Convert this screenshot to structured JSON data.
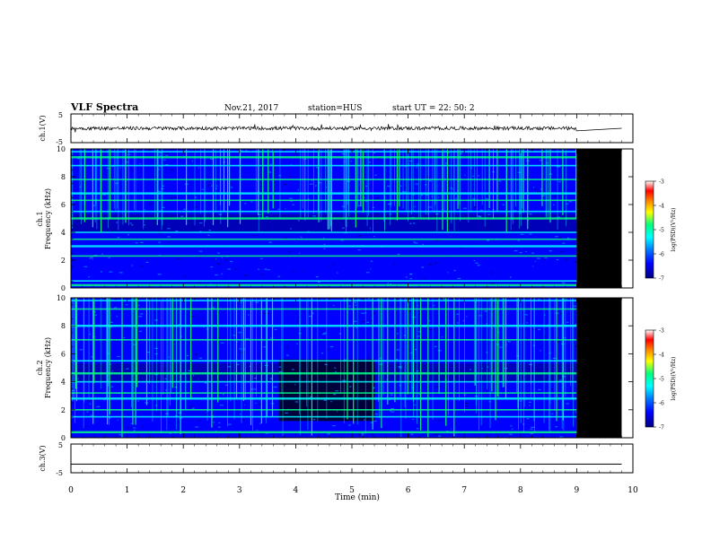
{
  "header": {
    "title": "VLF Spectra",
    "date": "Nov.21, 2017",
    "station": "station=HUS",
    "start": "start  UT =   22: 50: 2"
  },
  "colormap": [
    "#000080",
    "#0000ff",
    "#0080ff",
    "#00ffff",
    "#00ff80",
    "#ffff00",
    "#ff8000",
    "#ff0000",
    "#ffffff"
  ],
  "chart_data": [
    {
      "type": "line",
      "panel": "waveform",
      "ylabel": "ch.1(V)",
      "ylim": [
        -5,
        5
      ],
      "yticks": [
        "5",
        "-5"
      ],
      "x": [
        0,
        9,
        9.8
      ],
      "values": [
        0,
        0,
        0
      ],
      "noise_amplitude": 0.6,
      "xlim": [
        0,
        10
      ]
    },
    {
      "type": "heatmap",
      "panel": "spectrogram",
      "ylabel": "ch.1\nFrequency (kHz)",
      "ylim": [
        0,
        10
      ],
      "yticks": [
        "0",
        "2",
        "4",
        "6",
        "8",
        "10"
      ],
      "data_end_min": 9,
      "record_end_min": 9.8,
      "tones_khz": [
        0.2,
        0.5,
        2.3,
        3.0,
        3.5,
        4.0,
        5.0,
        5.5,
        6.3,
        6.8,
        7.8,
        8.8,
        9.4,
        9.8
      ],
      "colorbar": {
        "label": "log(PSD)(V^2/Hz)",
        "ticks": [
          "-3",
          "-4",
          "-5",
          "-6",
          "-7"
        ],
        "range": [
          -7,
          -3
        ]
      }
    },
    {
      "type": "heatmap",
      "panel": "spectrogram",
      "ylabel": "ch.2\nFrequency (kHz)",
      "ylim": [
        0,
        10
      ],
      "yticks": [
        "0",
        "2",
        "4",
        "6",
        "8",
        "10"
      ],
      "data_end_min": 9,
      "record_end_min": 9.8,
      "tones_khz": [
        0.4,
        1.5,
        2.0,
        2.8,
        3.2,
        4.0,
        4.6,
        5.5,
        7.0,
        8.0,
        9.2,
        9.8
      ],
      "quiet_interval_min": [
        3.7,
        5.4
      ],
      "colorbar": {
        "label": "log(PSD)(V^2/Hz)",
        "ticks": [
          "-3",
          "-4",
          "-5",
          "-6",
          "-7"
        ],
        "range": [
          -7,
          -3
        ]
      }
    },
    {
      "type": "line",
      "panel": "waveform",
      "ylabel": "ch.3(V)",
      "ylim": [
        -5,
        5
      ],
      "yticks": [
        "5",
        "-5"
      ],
      "x": [
        0,
        9.8
      ],
      "values": [
        -2,
        -2
      ],
      "xlim": [
        0,
        10
      ]
    }
  ],
  "xaxis": {
    "label": "Time (min)",
    "ticks": [
      "0",
      "1",
      "2",
      "3",
      "4",
      "5",
      "6",
      "7",
      "8",
      "9",
      "10"
    ],
    "xlim": [
      0,
      10
    ]
  }
}
